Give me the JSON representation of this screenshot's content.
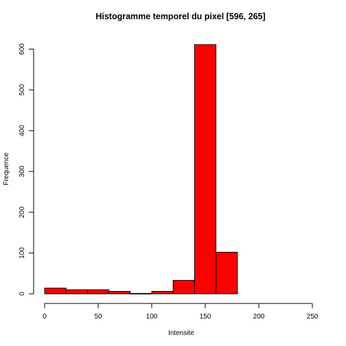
{
  "chart_data": {
    "type": "bar",
    "title": "Histogramme temporel du pixel [596, 265]",
    "xlabel": "Intensite",
    "ylabel": "Frequence",
    "bins": [
      {
        "x0": 0,
        "x1": 20,
        "count": 14
      },
      {
        "x0": 20,
        "x1": 40,
        "count": 10
      },
      {
        "x0": 40,
        "x1": 60,
        "count": 10
      },
      {
        "x0": 60,
        "x1": 80,
        "count": 6
      },
      {
        "x0": 80,
        "x1": 100,
        "count": 1
      },
      {
        "x0": 100,
        "x1": 120,
        "count": 6
      },
      {
        "x0": 120,
        "x1": 140,
        "count": 33
      },
      {
        "x0": 140,
        "x1": 160,
        "count": 611
      },
      {
        "x0": 160,
        "x1": 180,
        "count": 102
      }
    ],
    "xlim": [
      0,
      250
    ],
    "ylim": [
      0,
      620
    ],
    "xticks": [
      0,
      50,
      100,
      150,
      200,
      250
    ],
    "yticks": [
      0,
      100,
      200,
      300,
      400,
      500,
      600
    ],
    "bar_color": "#ff0000",
    "grid": false
  }
}
